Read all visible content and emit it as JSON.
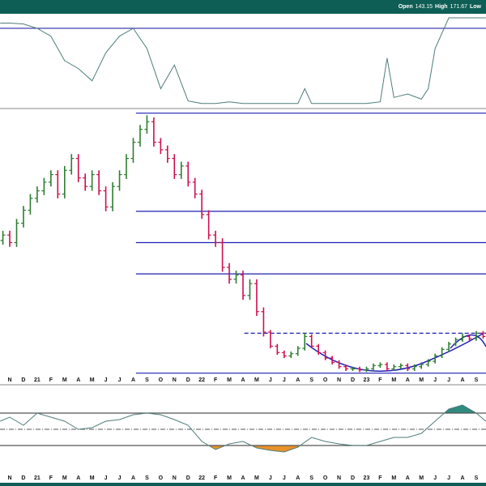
{
  "header": {
    "items": [
      {
        "label": "Open",
        "value": 143.15
      },
      {
        "label": "High",
        "value": 171.67
      },
      {
        "label": "Low"
      }
    ]
  },
  "chart_data": [
    {
      "type": "line",
      "color": "#4f7d7a",
      "xlim": [
        -0.71,
        34.71
      ],
      "ylim": [
        0,
        100
      ],
      "x": [
        -0.7,
        0,
        1,
        2,
        3,
        4,
        5,
        6,
        7,
        8,
        9,
        10,
        11,
        12,
        13,
        14,
        15,
        16,
        17,
        18,
        19,
        20,
        21,
        21.5,
        22,
        23,
        24,
        25,
        26,
        27,
        27.5,
        28,
        29,
        30,
        30.5,
        31,
        32,
        33,
        34,
        34.7
      ],
      "values": [
        94,
        94,
        93,
        88,
        79,
        51,
        42,
        28,
        60,
        79,
        88,
        65,
        19,
        46,
        5,
        2,
        2,
        4,
        2,
        2,
        2,
        2,
        2,
        19,
        2,
        2,
        2,
        2,
        2,
        4,
        54,
        9,
        13,
        7,
        19,
        65,
        100,
        100,
        100,
        100
      ],
      "levels": [
        {
          "value": 88,
          "color": "#2a2aa8"
        }
      ]
    },
    {
      "type": "ohlc",
      "up_color": "#2e7d32",
      "down_color": "#d0104c",
      "xlim": [
        -0.71,
        34.71
      ],
      "ylim": [
        112,
        356
      ],
      "xticks": [
        {
          "value": 0,
          "label": "N"
        },
        {
          "value": 1,
          "label": "D"
        },
        {
          "value": 2,
          "label": "21"
        },
        {
          "value": 3,
          "label": "F"
        },
        {
          "value": 4,
          "label": "M"
        },
        {
          "value": 5,
          "label": "A"
        },
        {
          "value": 6,
          "label": "M"
        },
        {
          "value": 7,
          "label": "J"
        },
        {
          "value": 8,
          "label": "J"
        },
        {
          "value": 9,
          "label": "A"
        },
        {
          "value": 10,
          "label": "S"
        },
        {
          "value": 11,
          "label": "O"
        },
        {
          "value": 12,
          "label": "N"
        },
        {
          "value": 13,
          "label": "D"
        },
        {
          "value": 14,
          "label": "22"
        },
        {
          "value": 15,
          "label": "F"
        },
        {
          "value": 16,
          "label": "M"
        },
        {
          "value": 17,
          "label": "A"
        },
        {
          "value": 18,
          "label": "M"
        },
        {
          "value": 19,
          "label": "J"
        },
        {
          "value": 20,
          "label": "J"
        },
        {
          "value": 21,
          "label": "A"
        },
        {
          "value": 22,
          "label": "S"
        },
        {
          "value": 23,
          "label": "O"
        },
        {
          "value": 24,
          "label": "N"
        },
        {
          "value": 25,
          "label": "D"
        },
        {
          "value": 26,
          "label": "23"
        },
        {
          "value": 27,
          "label": "F"
        },
        {
          "value": 28,
          "label": "M"
        },
        {
          "value": 29,
          "label": "A"
        },
        {
          "value": 30,
          "label": "M"
        },
        {
          "value": 31,
          "label": "J"
        },
        {
          "value": 32,
          "label": "J"
        },
        {
          "value": 33,
          "label": "A"
        },
        {
          "value": 34,
          "label": "S"
        }
      ],
      "x": [
        -0.5,
        0,
        0.5,
        1,
        1.5,
        2,
        2.5,
        3,
        3.5,
        4,
        4.5,
        5,
        5.5,
        6,
        6.5,
        7,
        7.5,
        8,
        8.5,
        9,
        9.5,
        10,
        10.5,
        11,
        11.5,
        12,
        12.5,
        13,
        13.5,
        14,
        14.5,
        15,
        15.5,
        16,
        16.5,
        17,
        17.5,
        18,
        18.5,
        19,
        19.5,
        20,
        20.5,
        21,
        21.5,
        22,
        22.5,
        23,
        23.5,
        24,
        24.5,
        25,
        25.5,
        26,
        26.5,
        27,
        27.5,
        28,
        28.5,
        29,
        29.5,
        30,
        30.5,
        31,
        31.5,
        32,
        32.5,
        33,
        33.5,
        34,
        34.5
      ],
      "open": [
        236,
        241,
        234,
        252,
        264,
        275,
        282,
        290,
        297,
        279,
        301,
        312,
        294,
        286,
        297,
        282,
        267,
        286,
        297,
        312,
        327,
        339,
        346,
        327,
        320,
        312,
        297,
        305,
        290,
        279,
        260,
        241,
        234,
        211,
        200,
        204,
        185,
        196,
        170,
        151,
        138,
        132,
        129,
        131,
        136,
        147,
        138,
        132,
        127,
        123,
        119,
        117,
        117,
        116,
        117,
        120,
        121,
        117,
        119,
        120,
        117,
        119,
        121,
        124,
        129,
        135,
        140,
        144,
        147,
        145,
        150
      ],
      "high": [
        245,
        245,
        256,
        268,
        279,
        286,
        294,
        301,
        301,
        305,
        316,
        316,
        298,
        301,
        301,
        286,
        290,
        301,
        316,
        331,
        343,
        352,
        350,
        331,
        324,
        316,
        309,
        309,
        294,
        283,
        264,
        245,
        238,
        215,
        208,
        208,
        200,
        200,
        174,
        153,
        140,
        134,
        133,
        138,
        150,
        149,
        140,
        134,
        129,
        125,
        121,
        119,
        119,
        119,
        122,
        123,
        123,
        121,
        122,
        122,
        121,
        123,
        126,
        131,
        137,
        142,
        146,
        150,
        149,
        152,
        152
      ],
      "low": [
        232,
        230,
        230,
        248,
        260,
        271,
        278,
        286,
        275,
        275,
        297,
        290,
        282,
        282,
        278,
        263,
        263,
        282,
        293,
        308,
        323,
        335,
        323,
        316,
        308,
        293,
        293,
        286,
        275,
        256,
        237,
        230,
        207,
        196,
        196,
        181,
        181,
        166,
        147,
        136,
        130,
        127,
        127,
        129,
        134,
        136,
        130,
        125,
        121,
        117,
        115,
        115,
        114,
        114,
        115,
        118,
        115,
        115,
        117,
        115,
        115,
        117,
        119,
        122,
        127,
        133,
        138,
        142,
        143,
        143,
        145
      ],
      "close": [
        241,
        234,
        252,
        264,
        275,
        282,
        290,
        297,
        279,
        301,
        312,
        294,
        286,
        297,
        282,
        267,
        286,
        297,
        312,
        327,
        339,
        346,
        327,
        320,
        312,
        297,
        305,
        290,
        279,
        260,
        241,
        234,
        211,
        200,
        204,
        185,
        196,
        170,
        151,
        138,
        132,
        129,
        131,
        136,
        147,
        138,
        132,
        127,
        123,
        119,
        117,
        117,
        116,
        117,
        120,
        121,
        117,
        119,
        120,
        117,
        119,
        121,
        124,
        129,
        135,
        140,
        144,
        147,
        145,
        150,
        147
      ],
      "levels": [
        {
          "value": 354,
          "from": 9.2,
          "color": "#1f1fb4"
        },
        {
          "value": 263,
          "from": 9.2,
          "color": "#1f1fb4"
        },
        {
          "value": 234,
          "from": 9.2,
          "color": "#1f1fb4"
        },
        {
          "value": 205,
          "from": 9.2,
          "color": "#1f1fb4"
        },
        {
          "value": 113,
          "from": 9.2,
          "color": "#1f1fb4"
        },
        {
          "value": 150,
          "from": 17.1,
          "color": "#1f1fb4",
          "style": "dashed"
        }
      ]
    },
    {
      "type": "line",
      "color": "#4f7d7a",
      "xlim": [
        -0.71,
        34.71
      ],
      "ylim": [
        -100,
        100
      ],
      "xticks": [
        {
          "value": 0,
          "label": "N"
        },
        {
          "value": 1,
          "label": "D"
        },
        {
          "value": 2,
          "label": "21"
        },
        {
          "value": 3,
          "label": "F"
        },
        {
          "value": 4,
          "label": "M"
        },
        {
          "value": 5,
          "label": "A"
        },
        {
          "value": 6,
          "label": "M"
        },
        {
          "value": 7,
          "label": "J"
        },
        {
          "value": 8,
          "label": "J"
        },
        {
          "value": 9,
          "label": "A"
        },
        {
          "value": 10,
          "label": "S"
        },
        {
          "value": 11,
          "label": "O"
        },
        {
          "value": 12,
          "label": "N"
        },
        {
          "value": 13,
          "label": "D"
        },
        {
          "value": 14,
          "label": "22"
        },
        {
          "value": 15,
          "label": "F"
        },
        {
          "value": 16,
          "label": "M"
        },
        {
          "value": 17,
          "label": "A"
        },
        {
          "value": 18,
          "label": "M"
        },
        {
          "value": 19,
          "label": "J"
        },
        {
          "value": 20,
          "label": "J"
        },
        {
          "value": 21,
          "label": "A"
        },
        {
          "value": 22,
          "label": "S"
        },
        {
          "value": 23,
          "label": "O"
        },
        {
          "value": 24,
          "label": "N"
        },
        {
          "value": 25,
          "label": "D"
        },
        {
          "value": 26,
          "label": "23"
        },
        {
          "value": 27,
          "label": "F"
        },
        {
          "value": 28,
          "label": "M"
        },
        {
          "value": 29,
          "label": "A"
        },
        {
          "value": 30,
          "label": "M"
        },
        {
          "value": 31,
          "label": "J"
        },
        {
          "value": 32,
          "label": "J"
        },
        {
          "value": 33,
          "label": "A"
        },
        {
          "value": 34,
          "label": "S"
        }
      ],
      "x": [
        -0.7,
        0,
        1,
        2,
        3,
        4,
        5,
        6,
        7,
        8,
        9,
        10,
        11,
        12,
        13,
        14,
        15,
        16,
        17,
        18,
        19,
        20,
        21,
        22,
        23,
        24,
        25,
        26,
        27,
        28,
        29,
        30,
        31,
        32,
        33,
        34,
        34.7
      ],
      "values": [
        20,
        30,
        10,
        40,
        30,
        20,
        0,
        4,
        20,
        24,
        36,
        40,
        36,
        24,
        10,
        -30,
        -50,
        -36,
        -30,
        -46,
        -52,
        -56,
        -44,
        -20,
        -30,
        -36,
        -40,
        -40,
        -30,
        -20,
        -20,
        -10,
        20,
        50,
        60,
        40,
        20
      ],
      "levels": [
        {
          "value": 40,
          "color": "#555555",
          "fill": "#2f8a80",
          "fill_side": "above"
        },
        {
          "value": 0,
          "color": "#777777",
          "style": "dashdot"
        },
        {
          "value": -40,
          "color": "#555555",
          "fill": "#e8922a",
          "fill_side": "below"
        }
      ]
    }
  ]
}
